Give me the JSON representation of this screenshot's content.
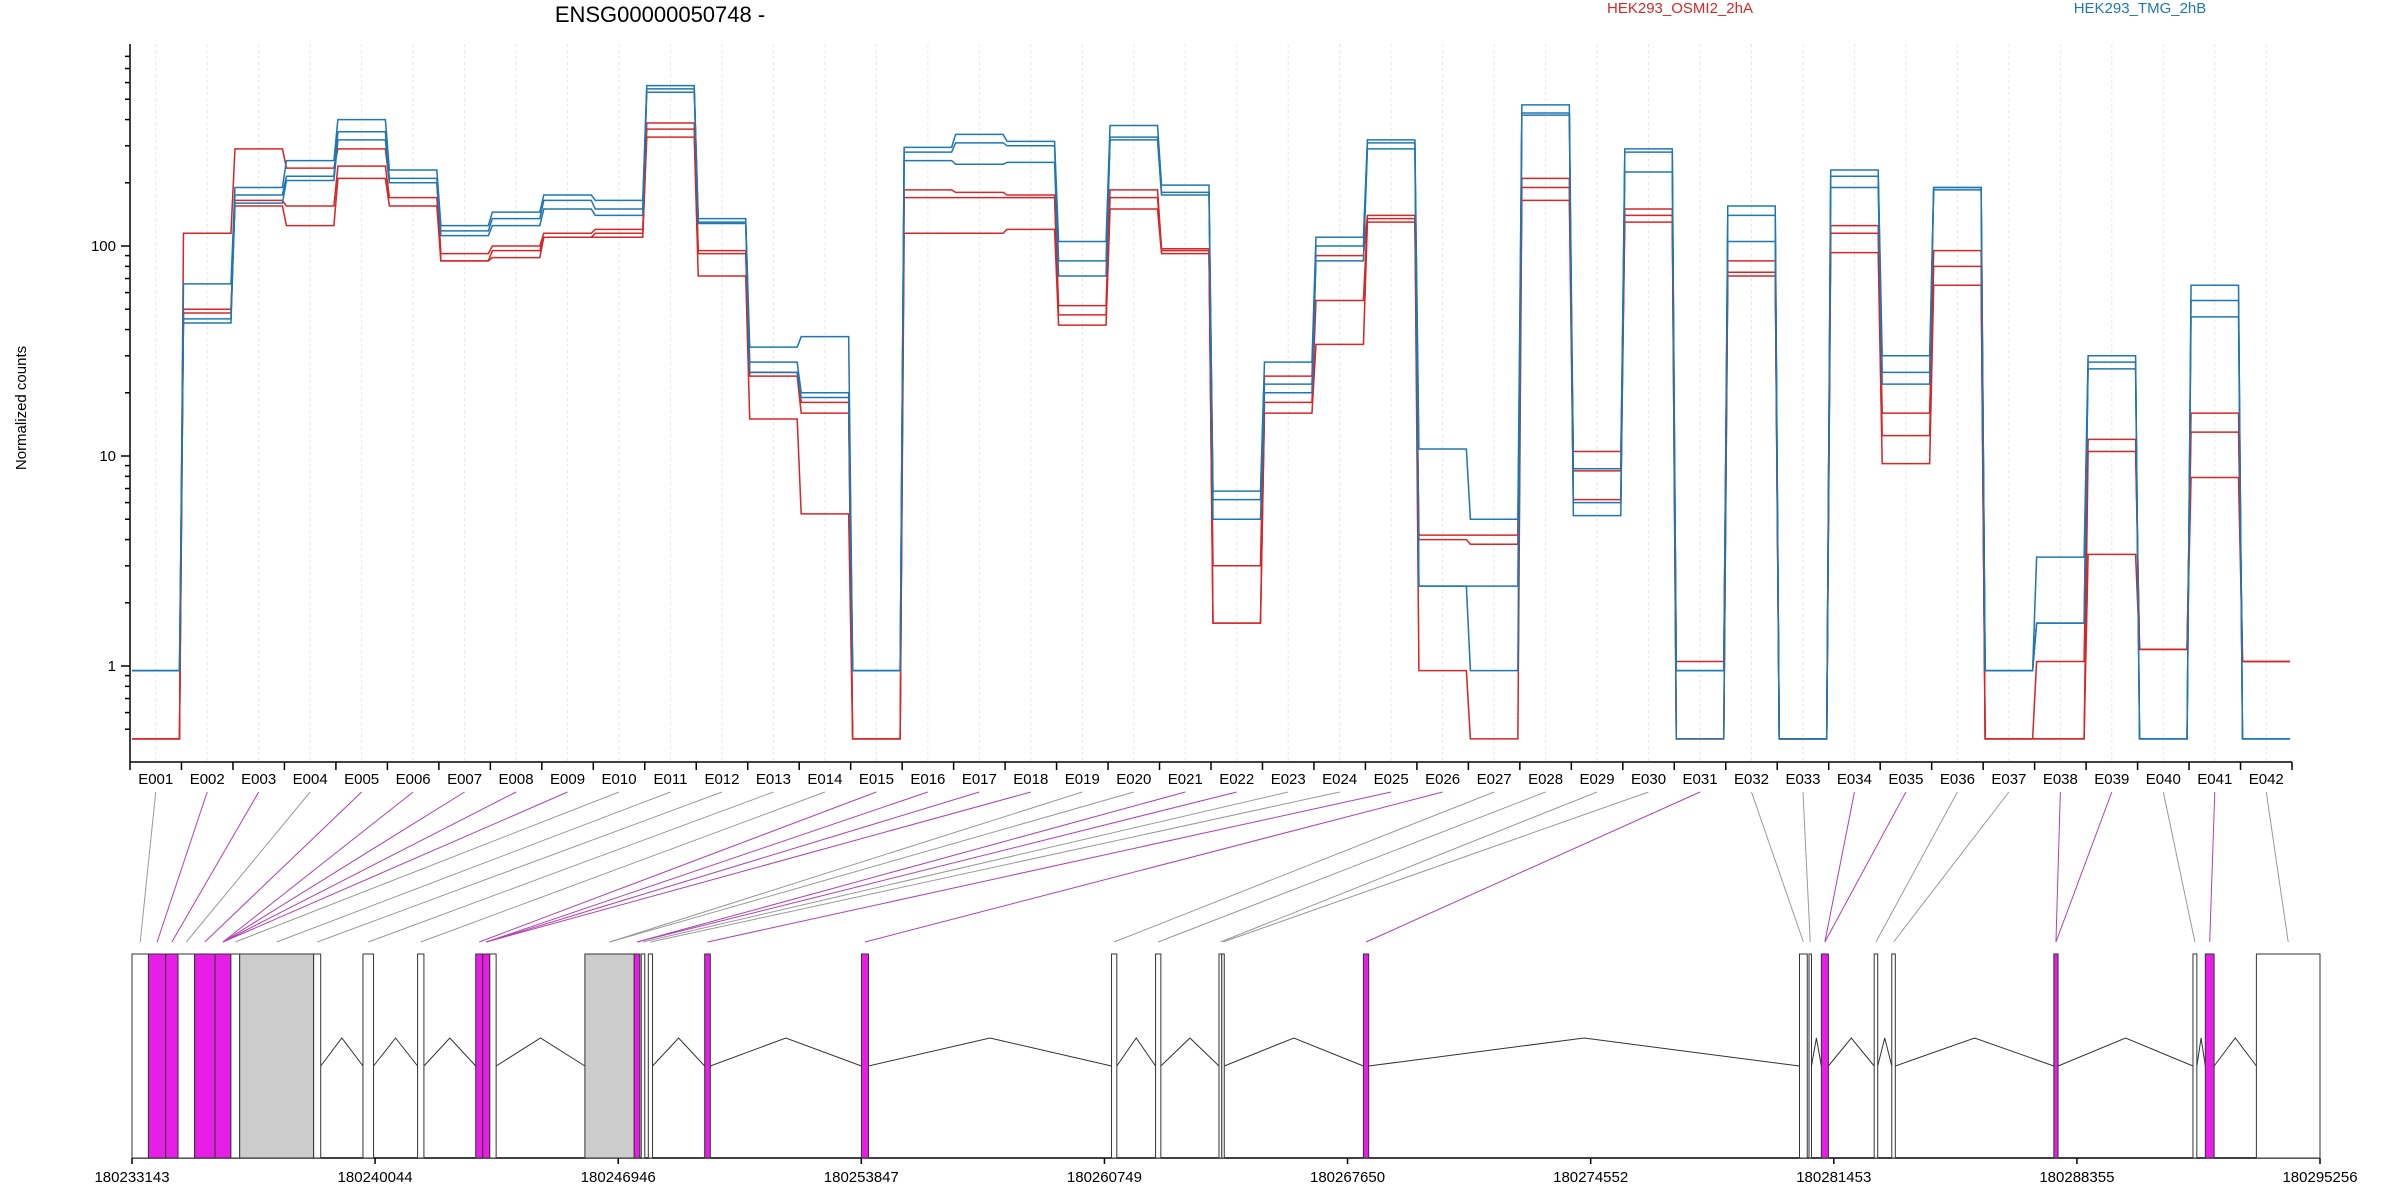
{
  "chart_data": {
    "type": "line",
    "title": "ENSG00000050748 -",
    "ylabel": "Normalized counts",
    "yscale": "log",
    "ylim": [
      0.42,
      800
    ],
    "yticks": [
      "1",
      "10",
      "100"
    ],
    "ytick_values": [
      1,
      10,
      100
    ],
    "categories": [
      "E001",
      "E002",
      "E003",
      "E004",
      "E005",
      "E006",
      "E007",
      "E008",
      "E009",
      "E010",
      "E011",
      "E012",
      "E013",
      "E014",
      "E015",
      "E016",
      "E017",
      "E018",
      "E019",
      "E020",
      "E021",
      "E022",
      "E023",
      "E024",
      "E025",
      "E026",
      "E027",
      "E028",
      "E029",
      "E030",
      "E031",
      "E032",
      "E033",
      "E034",
      "E035",
      "E036",
      "E037",
      "E038",
      "E039",
      "E040",
      "E041",
      "E042"
    ],
    "legend": [
      "HEK293_OSMI2_2hA",
      "HEK293_TMG_2hB"
    ],
    "series": [
      {
        "group": "HEK293_OSMI2_2hA",
        "color": "#d62728",
        "values": [
          0.45,
          115,
          290,
          235,
          290,
          200,
          92,
          100,
          115,
          120,
          385,
          95,
          25,
          18,
          0.45,
          185,
          180,
          175,
          52,
          185,
          97,
          3.0,
          24,
          90,
          140,
          4.2,
          4.2,
          210,
          10.5,
          150,
          1.05,
          85,
          0.45,
          125,
          16,
          95,
          0.45,
          1.05,
          12,
          1.2,
          16,
          1.05
        ]
      },
      {
        "group": "HEK293_OSMI2_2hA",
        "color": "#d62728",
        "values": [
          0.45,
          48,
          165,
          155,
          240,
          170,
          85,
          95,
          110,
          115,
          360,
          92,
          24,
          16,
          0.45,
          170,
          170,
          170,
          47,
          170,
          95,
          1.6,
          18,
          55,
          135,
          0.95,
          0.45,
          190,
          8.5,
          140,
          0.45,
          75,
          0.45,
          115,
          12.5,
          80,
          0.45,
          0.45,
          10.5,
          1.2,
          13,
          1.05
        ]
      },
      {
        "group": "HEK293_OSMI2_2hA",
        "color": "#d62728",
        "values": [
          0.45,
          50,
          155,
          125,
          210,
          155,
          85,
          88,
          110,
          110,
          330,
          72,
          15,
          5.3,
          0.45,
          115,
          115,
          120,
          42,
          150,
          92,
          1.6,
          16,
          34,
          130,
          4.0,
          3.8,
          165,
          6.2,
          130,
          0.45,
          72,
          0.45,
          93,
          9.2,
          65,
          0.45,
          0.45,
          3.4,
          1.2,
          7.9,
          1.05
        ]
      },
      {
        "group": "HEK293_TMG_2hB",
        "color": "#1f77b4",
        "values": [
          0.95,
          66,
          190,
          255,
          400,
          230,
          125,
          145,
          175,
          165,
          580,
          135,
          33,
          37,
          0.95,
          295,
          340,
          315,
          105,
          375,
          195,
          6.8,
          28,
          110,
          320,
          10.8,
          5.0,
          470,
          8.7,
          290,
          0.45,
          155,
          0.45,
          230,
          30,
          190,
          0.95,
          3.3,
          30,
          0.45,
          65,
          0.45
        ]
      },
      {
        "group": "HEK293_TMG_2hB",
        "color": "#1f77b4",
        "values": [
          0.95,
          45,
          175,
          215,
          350,
          210,
          118,
          135,
          165,
          150,
          560,
          130,
          28,
          20,
          0.95,
          280,
          310,
          300,
          85,
          330,
          180,
          6.2,
          22,
          100,
          310,
          2.4,
          2.4,
          430,
          6.0,
          280,
          0.95,
          140,
          0.45,
          215,
          25,
          190,
          0.95,
          1.6,
          28,
          0.45,
          55,
          0.45
        ]
      },
      {
        "group": "HEK293_TMG_2hB",
        "color": "#1f77b4",
        "values": [
          0.95,
          43,
          160,
          205,
          320,
          200,
          112,
          125,
          150,
          140,
          540,
          128,
          25,
          19,
          0.95,
          255,
          245,
          250,
          72,
          320,
          175,
          5.0,
          20,
          85,
          290,
          2.4,
          0.95,
          420,
          5.2,
          225,
          0.95,
          105,
          0.45,
          190,
          22,
          185,
          0.95,
          1.6,
          26,
          0.45,
          46,
          0.45
        ]
      }
    ],
    "gene_model": {
      "coordinates": [
        "180233143",
        "180240044",
        "180246946",
        "180253847",
        "180260749",
        "180267650",
        "180274552",
        "180281453",
        "180288355",
        "180295256"
      ],
      "exons": [
        {
          "id": "E001",
          "start": 180233143,
          "end": 180233610,
          "highlight": false
        },
        {
          "id": "E002",
          "start": 180233610,
          "end": 180234100,
          "highlight": true
        },
        {
          "id": "E003",
          "start": 180234100,
          "end": 180234450,
          "highlight": true
        },
        {
          "id": "E004",
          "start": 180234450,
          "end": 180234920,
          "highlight": false
        },
        {
          "id": "E005",
          "start": 180234920,
          "end": 180235500,
          "highlight": true
        },
        {
          "id": "E006",
          "start": 180235500,
          "end": 180235950,
          "highlight": true
        },
        {
          "id": "E007",
          "start": 180235950,
          "end": 180236200,
          "highlight": false
        },
        {
          "id": "E008",
          "start": 180236200,
          "end": 180238300,
          "highlight": false
        },
        {
          "id": "E009",
          "start": 180238300,
          "end": 180238500,
          "highlight": false
        },
        {
          "id": "E010",
          "start": 180239700,
          "end": 180240000,
          "highlight": false
        },
        {
          "id": "E011",
          "start": 180241250,
          "end": 180241430,
          "highlight": false
        },
        {
          "id": "E012",
          "start": 180242900,
          "end": 180243100,
          "highlight": true
        },
        {
          "id": "E013",
          "start": 180243100,
          "end": 180243300,
          "highlight": true
        },
        {
          "id": "E014",
          "start": 180243300,
          "end": 180243480,
          "highlight": false
        },
        {
          "id": "E015",
          "start": 180246000,
          "end": 180247400,
          "highlight": false
        },
        {
          "id": "E016",
          "start": 180247400,
          "end": 180247560,
          "highlight": true
        },
        {
          "id": "E017",
          "start": 180247600,
          "end": 180247700,
          "highlight": false
        },
        {
          "id": "E018",
          "start": 180247800,
          "end": 180247920,
          "highlight": false
        },
        {
          "id": "E019",
          "start": 180249400,
          "end": 180249560,
          "highlight": true
        },
        {
          "id": "E020",
          "start": 180253850,
          "end": 180254050,
          "highlight": true
        },
        {
          "id": "E021",
          "start": 180260950,
          "end": 180261100,
          "highlight": false
        },
        {
          "id": "E022",
          "start": 180262200,
          "end": 180262350,
          "highlight": false
        },
        {
          "id": "E023",
          "start": 180264000,
          "end": 180264080,
          "highlight": false
        },
        {
          "id": "E024",
          "start": 180264080,
          "end": 180264150,
          "highlight": false
        },
        {
          "id": "E025",
          "start": 180268100,
          "end": 180268250,
          "highlight": true
        },
        {
          "id": "E026",
          "start": 180280480,
          "end": 180280700,
          "highlight": false
        },
        {
          "id": "E027",
          "start": 180280750,
          "end": 180280820,
          "highlight": false
        },
        {
          "id": "E028",
          "start": 180281100,
          "end": 180281300,
          "highlight": true
        },
        {
          "id": "E029",
          "start": 180282600,
          "end": 180282700,
          "highlight": false
        },
        {
          "id": "E030",
          "start": 180283100,
          "end": 180283200,
          "highlight": false
        },
        {
          "id": "E031",
          "start": 180287700,
          "end": 180287820,
          "highlight": true
        },
        {
          "id": "E032",
          "start": 180291650,
          "end": 180291760,
          "highlight": false
        },
        {
          "id": "E033",
          "start": 180292000,
          "end": 180292250,
          "highlight": true
        },
        {
          "id": "E034",
          "start": 180293450,
          "end": 180295256,
          "highlight": false
        }
      ],
      "exon_links": [
        {
          "bin": "E001",
          "exon": "E001"
        },
        {
          "bin": "E002",
          "exon": "E002"
        },
        {
          "bin": "E003",
          "exon": "E003"
        },
        {
          "bin": "E004",
          "exon": "E004"
        },
        {
          "bin": "E005",
          "exon": "E005"
        },
        {
          "bin": "E006",
          "exon": "E006"
        },
        {
          "bin": "E007",
          "exon": "E006"
        },
        {
          "bin": "E008",
          "exon": "E006"
        },
        {
          "bin": "E009",
          "exon": "E006"
        },
        {
          "bin": "E010",
          "exon": "E007"
        },
        {
          "bin": "E011",
          "exon": "E008"
        },
        {
          "bin": "E012",
          "exon": "E009"
        },
        {
          "bin": "E013",
          "exon": "E010"
        },
        {
          "bin": "E014",
          "exon": "E011"
        },
        {
          "bin": "E015",
          "exon": "E012"
        },
        {
          "bin": "E016",
          "exon": "E013"
        },
        {
          "bin": "E017",
          "exon": "E013"
        },
        {
          "bin": "E018",
          "exon": "E013"
        },
        {
          "bin": "E019",
          "exon": "E015"
        },
        {
          "bin": "E020",
          "exon": "E015"
        },
        {
          "bin": "E021",
          "exon": "E016"
        },
        {
          "bin": "E022",
          "exon": "E016"
        },
        {
          "bin": "E023",
          "exon": "E017"
        },
        {
          "bin": "E024",
          "exon": "E018"
        },
        {
          "bin": "E025",
          "exon": "E019"
        },
        {
          "bin": "E026",
          "exon": "E020"
        },
        {
          "bin": "E027",
          "exon": "E021"
        },
        {
          "bin": "E028",
          "exon": "E022"
        },
        {
          "bin": "E029",
          "exon": "E023"
        },
        {
          "bin": "E030",
          "exon": "E024"
        },
        {
          "bin": "E031",
          "exon": "E025"
        },
        {
          "bin": "E032",
          "exon": "E026"
        },
        {
          "bin": "E033",
          "exon": "E027"
        },
        {
          "bin": "E034",
          "exon": "E028"
        },
        {
          "bin": "E035",
          "exon": "E028"
        },
        {
          "bin": "E036",
          "exon": "E029"
        },
        {
          "bin": "E037",
          "exon": "E030"
        },
        {
          "bin": "E038",
          "exon": "E031"
        },
        {
          "bin": "E039",
          "exon": "E031"
        },
        {
          "bin": "E040",
          "exon": "E032"
        },
        {
          "bin": "E041",
          "exon": "E033"
        },
        {
          "bin": "E042",
          "exon": "E034"
        }
      ]
    }
  }
}
